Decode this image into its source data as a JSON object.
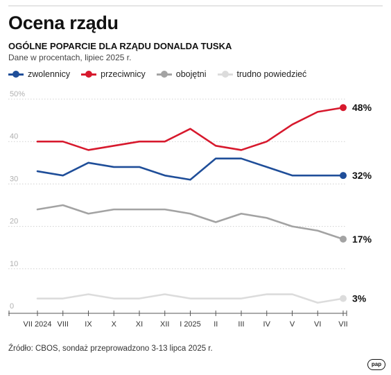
{
  "header": {
    "title": "Ocena rządu",
    "subtitle": "OGÓLNE POPARCIE DLA RZĄDU DONALDA TUSKA",
    "note": "Dane w procentach, lipiec 2025 r."
  },
  "footer": {
    "source": "Źródło: CBOS, sondaż przeprowadzono 3-13 lipca 2025 r.",
    "logo_text": "pap"
  },
  "chart_data": {
    "type": "line",
    "x": [
      "VII 2024",
      "VIII",
      "IX",
      "X",
      "XI",
      "XII",
      "I 2025",
      "II",
      "III",
      "IV",
      "V",
      "VI",
      "VII"
    ],
    "ylim": [
      0,
      50
    ],
    "yticks": [
      0,
      10,
      20,
      30,
      40,
      50
    ],
    "ytick_labels": [
      "0",
      "10",
      "20",
      "30",
      "40",
      "50%"
    ],
    "grid": true,
    "legend_position": "top-left",
    "series": [
      {
        "name": "zwolennicy",
        "color": "#1f4e99",
        "values": [
          33,
          32,
          35,
          34,
          34,
          32,
          31,
          36,
          36,
          34,
          32,
          32,
          32
        ],
        "end_label": "32%"
      },
      {
        "name": "przeciwnicy",
        "color": "#d7192d",
        "values": [
          40,
          40,
          38,
          39,
          40,
          40,
          43,
          39,
          38,
          40,
          44,
          47,
          48
        ],
        "end_label": "48%"
      },
      {
        "name": "obojętni",
        "color": "#a3a3a3",
        "values": [
          24,
          25,
          23,
          24,
          24,
          24,
          23,
          21,
          23,
          22,
          20,
          19,
          17
        ],
        "end_label": "17%"
      },
      {
        "name": "trudno powiedzieć",
        "color": "#dcdcdc",
        "values": [
          3,
          3,
          4,
          3,
          3,
          4,
          3,
          3,
          3,
          4,
          4,
          2,
          3
        ],
        "end_label": "3%"
      }
    ]
  }
}
